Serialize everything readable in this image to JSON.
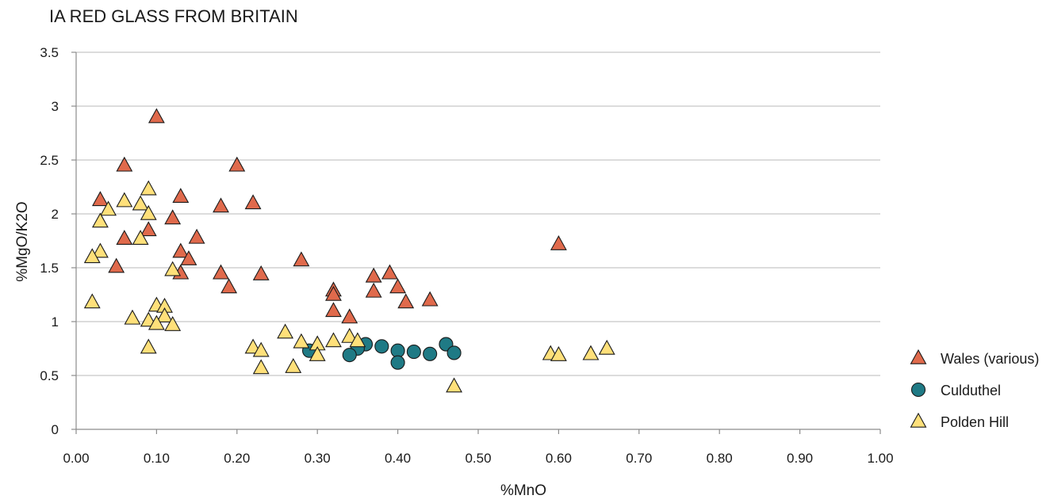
{
  "chart_data": {
    "type": "scatter",
    "title": "IA RED GLASS FROM BRITAIN",
    "xlabel": "%MnO",
    "ylabel": "%MgO/K2O",
    "xlim": [
      0,
      1.0
    ],
    "ylim": [
      0,
      3.5
    ],
    "x_ticks": [
      "0.00",
      "0.10",
      "0.20",
      "0.30",
      "0.40",
      "0.50",
      "0.60",
      "0.70",
      "0.80",
      "0.90",
      "1.00"
    ],
    "y_ticks": [
      "0",
      "0.5",
      "1",
      "1.5",
      "2",
      "2.5",
      "3",
      "3.5"
    ],
    "grid": "horizontal",
    "legend_position": "right",
    "series": [
      {
        "name": "Wales (various)",
        "marker": "triangle",
        "color": "#e06a4c",
        "points": [
          [
            0.1,
            2.9
          ],
          [
            0.06,
            2.45
          ],
          [
            0.2,
            2.45
          ],
          [
            0.03,
            2.13
          ],
          [
            0.13,
            2.16
          ],
          [
            0.22,
            2.1
          ],
          [
            0.18,
            2.07
          ],
          [
            0.12,
            1.96
          ],
          [
            0.09,
            1.85
          ],
          [
            0.06,
            1.77
          ],
          [
            0.15,
            1.78
          ],
          [
            0.13,
            1.65
          ],
          [
            0.14,
            1.58
          ],
          [
            0.28,
            1.57
          ],
          [
            0.05,
            1.51
          ],
          [
            0.13,
            1.45
          ],
          [
            0.18,
            1.45
          ],
          [
            0.23,
            1.44
          ],
          [
            0.39,
            1.45
          ],
          [
            0.37,
            1.42
          ],
          [
            0.19,
            1.32
          ],
          [
            0.4,
            1.32
          ],
          [
            0.32,
            1.29
          ],
          [
            0.37,
            1.28
          ],
          [
            0.32,
            1.25
          ],
          [
            0.41,
            1.18
          ],
          [
            0.44,
            1.2
          ],
          [
            0.32,
            1.1
          ],
          [
            0.34,
            1.04
          ],
          [
            0.6,
            1.72
          ]
        ]
      },
      {
        "name": "Culduthel",
        "marker": "circle",
        "color": "#1f7a85",
        "points": [
          [
            0.36,
            0.79
          ],
          [
            0.38,
            0.77
          ],
          [
            0.46,
            0.79
          ],
          [
            0.29,
            0.73
          ],
          [
            0.35,
            0.75
          ],
          [
            0.4,
            0.73
          ],
          [
            0.42,
            0.72
          ],
          [
            0.47,
            0.71
          ],
          [
            0.34,
            0.69
          ],
          [
            0.44,
            0.7
          ],
          [
            0.4,
            0.62
          ]
        ]
      },
      {
        "name": "Polden Hill",
        "marker": "triangle",
        "color": "#ffe07a",
        "points": [
          [
            0.09,
            2.23
          ],
          [
            0.06,
            2.12
          ],
          [
            0.08,
            2.09
          ],
          [
            0.04,
            2.04
          ],
          [
            0.09,
            2.0
          ],
          [
            0.03,
            1.93
          ],
          [
            0.08,
            1.77
          ],
          [
            0.03,
            1.65
          ],
          [
            0.02,
            1.6
          ],
          [
            0.12,
            1.48
          ],
          [
            0.02,
            1.18
          ],
          [
            0.1,
            1.15
          ],
          [
            0.11,
            1.14
          ],
          [
            0.07,
            1.03
          ],
          [
            0.09,
            1.01
          ],
          [
            0.11,
            1.05
          ],
          [
            0.1,
            0.98
          ],
          [
            0.12,
            0.97
          ],
          [
            0.09,
            0.76
          ],
          [
            0.26,
            0.9
          ],
          [
            0.22,
            0.76
          ],
          [
            0.23,
            0.73
          ],
          [
            0.28,
            0.81
          ],
          [
            0.3,
            0.79
          ],
          [
            0.3,
            0.69
          ],
          [
            0.32,
            0.82
          ],
          [
            0.34,
            0.86
          ],
          [
            0.35,
            0.82
          ],
          [
            0.23,
            0.57
          ],
          [
            0.27,
            0.58
          ],
          [
            0.47,
            0.4
          ],
          [
            0.59,
            0.7
          ],
          [
            0.6,
            0.69
          ],
          [
            0.64,
            0.7
          ],
          [
            0.66,
            0.75
          ]
        ]
      }
    ]
  }
}
